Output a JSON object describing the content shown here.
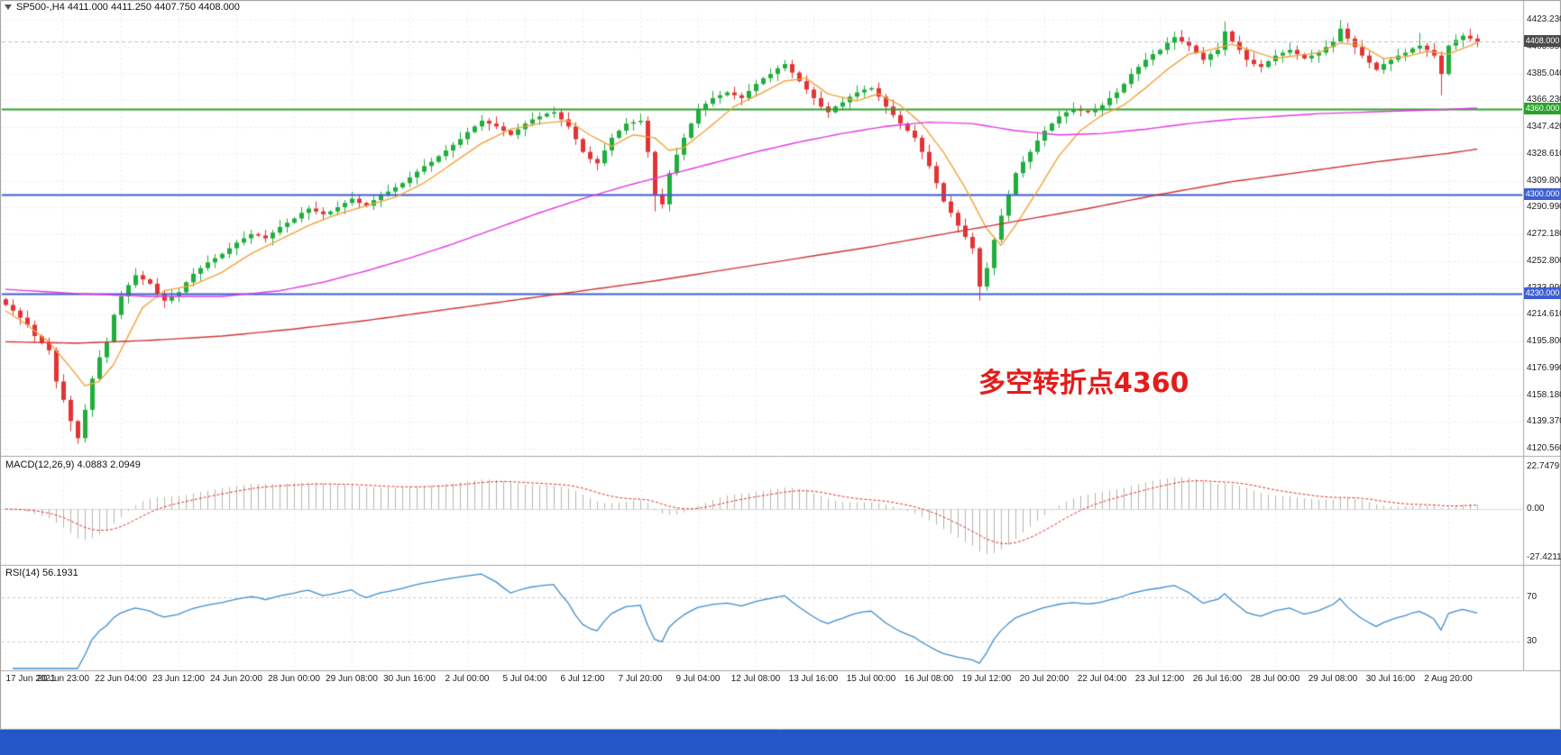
{
  "header": {
    "ohlc_text": "SP500-,H4  4411.000 4411.250 4407.750 4408.000"
  },
  "annotation": {
    "text": "多空转折点4360"
  },
  "colors": {
    "up": "#1fae3d",
    "down": "#e23434",
    "ma_fast": "#f2a33c",
    "ma_mid": "#e339e3",
    "ma_slow": "#d13434",
    "line_green": "#2ba32b",
    "line_blue": "#3f5fd0",
    "badge_dark": "#4a4a4a",
    "macd_hist": "#b4b4b4",
    "macd_signal": "#e23434",
    "rsi_line": "#3e8ed0",
    "grid": "#ededed",
    "annotation": "#e31c1c",
    "taskbar": "#2456c8"
  },
  "chart_data": {
    "type": "candlestick",
    "symbol": "SP500-",
    "timeframe": "H4",
    "last_ohlc": {
      "open": 4411.0,
      "high": 4411.25,
      "low": 4407.75,
      "close": 4408.0
    },
    "price_axis": {
      "max": 4423.23,
      "min": 4120.56,
      "ticks": [
        "4423.230",
        "4403.850",
        "4385.040",
        "4366.230",
        "4347.420",
        "4328.610",
        "4309.800",
        "4290.990",
        "4272.180",
        "4252.800",
        "4233.990",
        "4214.610",
        "4195.800",
        "4176.990",
        "4158.180",
        "4139.370",
        "4120.560"
      ]
    },
    "time_axis": {
      "bars_per_label": 8,
      "labels": [
        "17 Jun 2021",
        "20 Jun 23:00",
        "22 Jun 04:00",
        "23 Jun 12:00",
        "24 Jun 20:00",
        "28 Jun 00:00",
        "29 Jun 08:00",
        "30 Jun 16:00",
        "2 Jul 00:00",
        "5 Jul 04:00",
        "6 Jul 12:00",
        "7 Jul 20:00",
        "9 Jul 04:00",
        "12 Jul 08:00",
        "13 Jul 16:00",
        "15 Jul 00:00",
        "16 Jul 08:00",
        "19 Jul 12:00",
        "20 Jul 20:00",
        "22 Jul 04:00",
        "23 Jul 12:00",
        "26 Jul 16:00",
        "28 Jul 00:00",
        "29 Jul 08:00",
        "30 Jul 16:00",
        "2 Aug 20:00"
      ]
    },
    "closes": [
      4222,
      4218,
      4213,
      4208,
      4200,
      4195,
      4190,
      4168,
      4155,
      4140,
      4128,
      4148,
      4170,
      4185,
      4196,
      4215,
      4228,
      4236,
      4243,
      4240,
      4237,
      4230,
      4225,
      4228,
      4231,
      4238,
      4244,
      4248,
      4252,
      4255,
      4258,
      4262,
      4266,
      4269,
      4272,
      4271,
      4269,
      4273,
      4277,
      4280,
      4283,
      4287,
      4290,
      4288,
      4286,
      4288,
      4291,
      4294,
      4297,
      4294,
      4292,
      4296,
      4300,
      4302,
      4305,
      4308,
      4312,
      4316,
      4320,
      4323,
      4327,
      4331,
      4335,
      4339,
      4344,
      4348,
      4352,
      4350,
      4348,
      4345,
      4342,
      4346,
      4350,
      4353,
      4355,
      4357,
      4358,
      4353,
      4348,
      4339,
      4330,
      4325,
      4322,
      4331,
      4340,
      4345,
      4350,
      4351,
      4352,
      4330,
      4300,
      4293,
      4315,
      4328,
      4340,
      4350,
      4360,
      4364,
      4368,
      4370,
      4372,
      4370,
      4368,
      4373,
      4378,
      4382,
      4385,
      4389,
      4392,
      4386,
      4380,
      4374,
      4368,
      4362,
      4358,
      4362,
      4365,
      4369,
      4372,
      4374,
      4375,
      4369,
      4362,
      4356,
      4350,
      4345,
      4340,
      4330,
      4320,
      4308,
      4295,
      4287,
      4278,
      4270,
      4262,
      4235,
      4248,
      4268,
      4285,
      4300,
      4315,
      4323,
      4330,
      4338,
      4345,
      4350,
      4355,
      4358,
      4360,
      4359,
      4358,
      4360,
      4363,
      4368,
      4372,
      4378,
      4385,
      4390,
      4395,
      4399,
      4402,
      4407,
      4411,
      4408,
      4405,
      4400,
      4395,
      4399,
      4402,
      4415,
      4408,
      4402,
      4395,
      4392,
      4390,
      4394,
      4398,
      4400,
      4402,
      4399,
      4396,
      4398,
      4400,
      4404,
      4408,
      4417,
      4410,
      4404,
      4398,
      4393,
      4388,
      4392,
      4395,
      4398,
      4400,
      4403,
      4405,
      4402,
      4398,
      4385,
      4405,
      4409,
      4412,
      4410,
      4408
    ],
    "wick_overrides": {
      "9": {
        "low": 4133
      },
      "10": {
        "low": 4124
      },
      "90": {
        "low": 4288
      },
      "108": {
        "high": 4395
      },
      "135": {
        "low": 4225
      },
      "162": {
        "high": 4415
      },
      "169": {
        "high": 4422
      },
      "185": {
        "high": 4423
      },
      "196": {
        "high": 4414
      },
      "199": {
        "low": 4370
      }
    },
    "horizontal_lines": [
      {
        "type": "current-price",
        "price": 4408.0,
        "label": "4408.000",
        "color": "#c0c0c0",
        "style": "dashed",
        "width": 1,
        "badge_color": "#4a4a4a"
      },
      {
        "type": "resistance-line",
        "price": 4360.0,
        "label": "4360.000",
        "color": "#2ba32b",
        "style": "solid",
        "width": 2,
        "badge_color": "#2ba32b"
      },
      {
        "type": "support-line",
        "price": 4300.0,
        "label": "4300.000",
        "color": "#3f5fd0",
        "style": "solid",
        "width": 2,
        "badge_color": "#3f5fd0"
      },
      {
        "type": "support-line",
        "price": 4230.0,
        "label": "4230.000",
        "color": "#3f5fd0",
        "style": "solid",
        "width": 2,
        "badge_color": "#3f5fd0"
      }
    ],
    "moving_averages": [
      {
        "name": "fast-ma-orange",
        "color": "#f2a33c",
        "points": [
          [
            0,
            4218
          ],
          [
            3,
            4208
          ],
          [
            6,
            4196
          ],
          [
            9,
            4178
          ],
          [
            11,
            4165
          ],
          [
            13,
            4168
          ],
          [
            15,
            4180
          ],
          [
            17,
            4200
          ],
          [
            19,
            4220
          ],
          [
            22,
            4232
          ],
          [
            26,
            4236
          ],
          [
            30,
            4245
          ],
          [
            34,
            4258
          ],
          [
            38,
            4268
          ],
          [
            42,
            4278
          ],
          [
            46,
            4286
          ],
          [
            50,
            4292
          ],
          [
            54,
            4298
          ],
          [
            58,
            4308
          ],
          [
            62,
            4322
          ],
          [
            66,
            4336
          ],
          [
            70,
            4346
          ],
          [
            74,
            4350
          ],
          [
            78,
            4352
          ],
          [
            81,
            4342
          ],
          [
            84,
            4334
          ],
          [
            87,
            4342
          ],
          [
            90,
            4340
          ],
          [
            92,
            4331
          ],
          [
            94,
            4333
          ],
          [
            97,
            4345
          ],
          [
            101,
            4362
          ],
          [
            105,
            4372
          ],
          [
            108,
            4380
          ],
          [
            111,
            4382
          ],
          [
            114,
            4371
          ],
          [
            118,
            4366
          ],
          [
            121,
            4371
          ],
          [
            124,
            4363
          ],
          [
            127,
            4350
          ],
          [
            130,
            4330
          ],
          [
            133,
            4305
          ],
          [
            136,
            4276
          ],
          [
            138,
            4264
          ],
          [
            140,
            4278
          ],
          [
            143,
            4302
          ],
          [
            146,
            4327
          ],
          [
            149,
            4345
          ],
          [
            152,
            4356
          ],
          [
            155,
            4363
          ],
          [
            158,
            4375
          ],
          [
            161,
            4388
          ],
          [
            164,
            4399
          ],
          [
            167,
            4402
          ],
          [
            170,
            4406
          ],
          [
            173,
            4401
          ],
          [
            176,
            4396
          ],
          [
            179,
            4398
          ],
          [
            182,
            4400
          ],
          [
            185,
            4407
          ],
          [
            188,
            4405
          ],
          [
            191,
            4396
          ],
          [
            194,
            4397
          ],
          [
            197,
            4401
          ],
          [
            200,
            4399
          ],
          [
            204,
            4407
          ]
        ]
      },
      {
        "name": "mid-ma-magenta",
        "color": "#e339e3",
        "points": [
          [
            0,
            4233
          ],
          [
            10,
            4230
          ],
          [
            20,
            4228
          ],
          [
            30,
            4228
          ],
          [
            38,
            4232
          ],
          [
            44,
            4238
          ],
          [
            50,
            4246
          ],
          [
            56,
            4255
          ],
          [
            62,
            4265
          ],
          [
            68,
            4276
          ],
          [
            74,
            4287
          ],
          [
            80,
            4297
          ],
          [
            86,
            4306
          ],
          [
            92,
            4314
          ],
          [
            98,
            4322
          ],
          [
            104,
            4330
          ],
          [
            110,
            4337
          ],
          [
            116,
            4343
          ],
          [
            122,
            4348
          ],
          [
            128,
            4351
          ],
          [
            134,
            4350
          ],
          [
            140,
            4345
          ],
          [
            146,
            4342
          ],
          [
            152,
            4343
          ],
          [
            158,
            4346
          ],
          [
            164,
            4350
          ],
          [
            170,
            4353
          ],
          [
            176,
            4355
          ],
          [
            182,
            4357
          ],
          [
            188,
            4358
          ],
          [
            194,
            4359
          ],
          [
            200,
            4360
          ],
          [
            204,
            4361
          ]
        ]
      },
      {
        "name": "slow-ma-red",
        "color": "#d13434",
        "points": [
          [
            0,
            4196
          ],
          [
            10,
            4195
          ],
          [
            20,
            4197
          ],
          [
            30,
            4200
          ],
          [
            40,
            4205
          ],
          [
            50,
            4211
          ],
          [
            60,
            4218
          ],
          [
            70,
            4225
          ],
          [
            80,
            4232
          ],
          [
            90,
            4239
          ],
          [
            100,
            4247
          ],
          [
            110,
            4255
          ],
          [
            120,
            4263
          ],
          [
            130,
            4272
          ],
          [
            140,
            4281
          ],
          [
            150,
            4290
          ],
          [
            160,
            4300
          ],
          [
            170,
            4309
          ],
          [
            180,
            4316
          ],
          [
            190,
            4323
          ],
          [
            200,
            4329
          ],
          [
            204,
            4332
          ]
        ]
      }
    ],
    "indicators": [
      {
        "type": "MACD",
        "label": "MACD(12,26,9) 4.0883 2.0949",
        "params": [
          12,
          26,
          9
        ],
        "values": [
          4.0883,
          2.0949
        ],
        "axis_ticks": [
          "22.7479",
          "0.00",
          "-27.4211"
        ]
      },
      {
        "type": "RSI",
        "label": "RSI(14) 56.1931",
        "period": 14,
        "value": 56.1931,
        "levels": [
          70,
          30
        ]
      }
    ]
  }
}
